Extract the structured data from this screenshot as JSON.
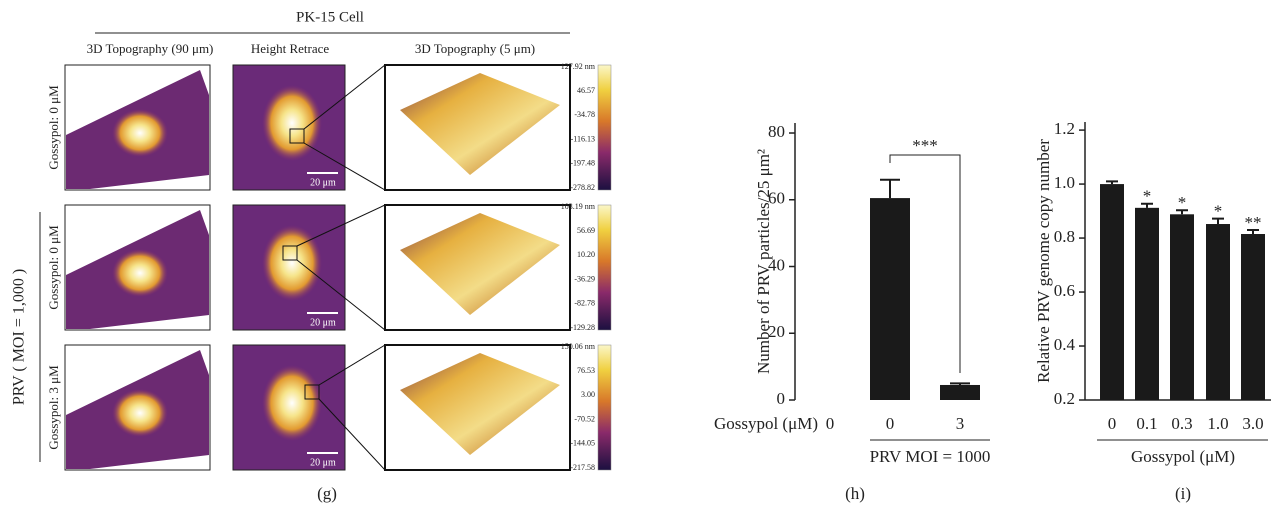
{
  "figure": {
    "panel_g": {
      "label": "(g)",
      "title": "PK-15 Cell",
      "columns": [
        "3D Topography (90 μm)",
        "Height Retrace",
        "3D Topography (5 μm)"
      ],
      "group_label": "PRV ( MOI = 1,000 )",
      "rows": [
        {
          "label": "Gossypol: 0 μM",
          "scale_bar": "20 μm",
          "colorbar": [
            "127.92 nm",
            "46.57",
            "-34.78",
            "-116.13",
            "-197.48",
            "-278.82"
          ]
        },
        {
          "label": "Gossypol: 0 μM",
          "scale_bar": "20 μm",
          "colorbar": [
            "103.19 nm",
            "56.69",
            "10.20",
            "-36.29",
            "-82.78",
            "-129.28"
          ]
        },
        {
          "label": "Gossypol: 3 μM",
          "scale_bar": "20 μm",
          "colorbar": [
            "150.06 nm",
            "76.53",
            "3.00",
            "-70.52",
            "-144.05",
            "-217.58"
          ]
        }
      ]
    }
  },
  "chart_data": [
    {
      "type": "bar",
      "panel_label": "(h)",
      "y_label": "Number of PRV particles/25 μm²",
      "x_label": "Gossypol (μM)",
      "categories": [
        "0",
        "0",
        "3"
      ],
      "values": [
        0,
        60.5,
        4.5
      ],
      "errors": [
        null,
        5.5,
        0.5
      ],
      "color": "#1a1a1a",
      "ylim": [
        0,
        83
      ],
      "yticks": [
        0,
        20,
        40,
        60,
        80
      ],
      "annotation": "***",
      "group_label": "PRV MOI = 1000"
    },
    {
      "type": "bar",
      "panel_label": "(i)",
      "y_label": "Relative PRV genome copy number",
      "x_label": "Gossypol (μM)",
      "categories": [
        "0",
        "0.1",
        "0.3",
        "1.0",
        "3.0"
      ],
      "values": [
        1.0,
        0.912,
        0.888,
        0.852,
        0.815
      ],
      "errors": [
        0.01,
        0.015,
        0.015,
        0.02,
        0.015
      ],
      "significance": [
        null,
        "*",
        "*",
        "*",
        "**"
      ],
      "color": "#1a1a1a",
      "ylim": [
        0.2,
        1.23
      ],
      "yticks": [
        0.2,
        0.4,
        0.6,
        0.8,
        {
          "value": 1,
          "label": "1.0"
        },
        1.2
      ]
    }
  ]
}
